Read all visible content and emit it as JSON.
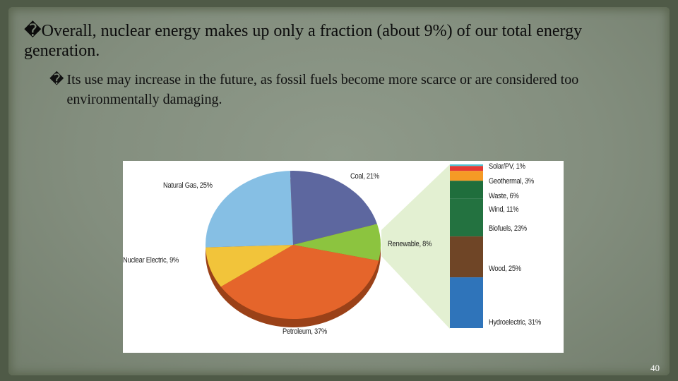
{
  "slide": {
    "bullet1": "�Overall, nuclear energy makes up only a fraction (about 9%) of our total energy generation.",
    "bullet2_marker": "�",
    "bullet2": "Its use may increase in the future, as fossil fuels become more scarce or are considered too environmentally damaging.",
    "page_number": "40"
  },
  "chart_data": {
    "type": "pie",
    "slices": [
      {
        "label": "Coal, 21%",
        "category": "Coal",
        "value": 21,
        "color": "#5d679f"
      },
      {
        "label": "Renewable, 8%",
        "category": "Renewable",
        "value": 8,
        "color": "#8cc43f"
      },
      {
        "label": "Petroleum, 37%",
        "category": "Petroleum",
        "value": 37,
        "color": "#e5652b"
      },
      {
        "label": "Nuclear Electric, 9%",
        "category": "Nuclear Electric",
        "value": 9,
        "color": "#f2c43a"
      },
      {
        "label": "Natural Gas, 25%",
        "category": "Natural Gas",
        "value": 25,
        "color": "#86bfe4"
      }
    ],
    "breakdown": {
      "of": "Renewable",
      "type": "stacked-bar",
      "segments": [
        {
          "label": "Solar/PV, 1%",
          "category": "Solar/PV",
          "value": 1,
          "color": "#4fc3d3"
        },
        {
          "label": "Geothermal, 3%",
          "category": "Geothermal",
          "value": 3,
          "color": "#e53a34"
        },
        {
          "label": "Waste, 6%",
          "category": "Waste",
          "value": 6,
          "color": "#f59a25"
        },
        {
          "label": "Wind, 11%",
          "category": "Wind",
          "value": 11,
          "color": "#1f6e3c"
        },
        {
          "label": "Biofuels, 23%",
          "category": "Biofuels",
          "value": 23,
          "color": "#237240"
        },
        {
          "label": "Wood, 25%",
          "category": "Wood",
          "value": 25,
          "color": "#6f4526"
        },
        {
          "label": "Hydroelectric, 31%",
          "category": "Hydroelectric",
          "value": 31,
          "color": "#2f74ba"
        }
      ]
    }
  }
}
